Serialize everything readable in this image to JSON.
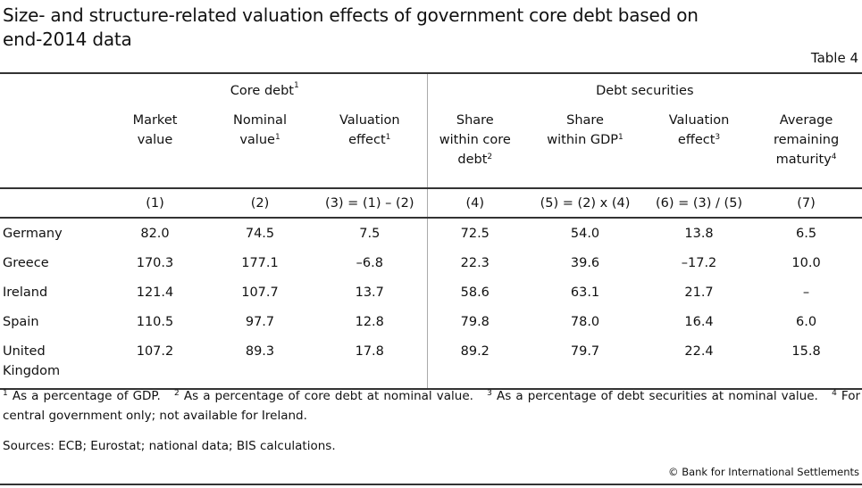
{
  "title": "Size- and structure-related valuation effects of government core debt based on end-2014 data",
  "table_number": "Table 4",
  "groups": {
    "core_debt": "Core debt",
    "core_debt_sup": "1",
    "debt_securities": "Debt securities"
  },
  "columns": [
    {
      "l1": "Market",
      "l2": "value",
      "l3": "",
      "sup": "",
      "num": "(1)"
    },
    {
      "l1": "Nominal",
      "l2": "value",
      "l3": "",
      "sup": "1",
      "num": "(2)"
    },
    {
      "l1": "Valuation",
      "l2": "effect",
      "l3": "",
      "sup": "1",
      "num": "(3) = (1) – (2)"
    },
    {
      "l1": "Share",
      "l2": "within core",
      "l3": "debt",
      "sup": "2",
      "num": "(4)"
    },
    {
      "l1": "Share",
      "l2": "within GDP",
      "l3": "",
      "sup": "1",
      "num": "(5) = (2) x (4)"
    },
    {
      "l1": "Valuation",
      "l2": "effect",
      "l3": "",
      "sup": "3",
      "num": "(6) = (3) / (5)"
    },
    {
      "l1": "Average",
      "l2": "remaining",
      "l3": "maturity",
      "sup": "4",
      "num": "(7)"
    }
  ],
  "rows": [
    {
      "country": "Germany",
      "v": [
        "82.0",
        "74.5",
        "7.5",
        "72.5",
        "54.0",
        "13.8",
        "6.5"
      ]
    },
    {
      "country": "Greece",
      "v": [
        "170.3",
        "177.1",
        "–6.8",
        "22.3",
        "39.6",
        "–17.2",
        "10.0"
      ]
    },
    {
      "country": "Ireland",
      "v": [
        "121.4",
        "107.7",
        "13.7",
        "58.6",
        "63.1",
        "21.7",
        "–"
      ]
    },
    {
      "country": "Spain",
      "v": [
        "110.5",
        "97.7",
        "12.8",
        "79.8",
        "78.0",
        "16.4",
        "6.0"
      ]
    },
    {
      "country": "United Kingdom",
      "v": [
        "107.2",
        "89.3",
        "17.8",
        "89.2",
        "79.7",
        "22.4",
        "15.8"
      ]
    }
  ],
  "footnotes": [
    {
      "sup": "1",
      "text": "As a percentage of GDP."
    },
    {
      "sup": "2",
      "text": "As a percentage of core debt at nominal value."
    },
    {
      "sup": "3",
      "text": "As a percentage of debt securities at nominal value."
    },
    {
      "sup": "4",
      "text": "For central government only; not available for Ireland."
    }
  ],
  "sources": "Sources: ECB; Eurostat; national data; BIS calculations.",
  "copyright": "© Bank for International Settlements"
}
